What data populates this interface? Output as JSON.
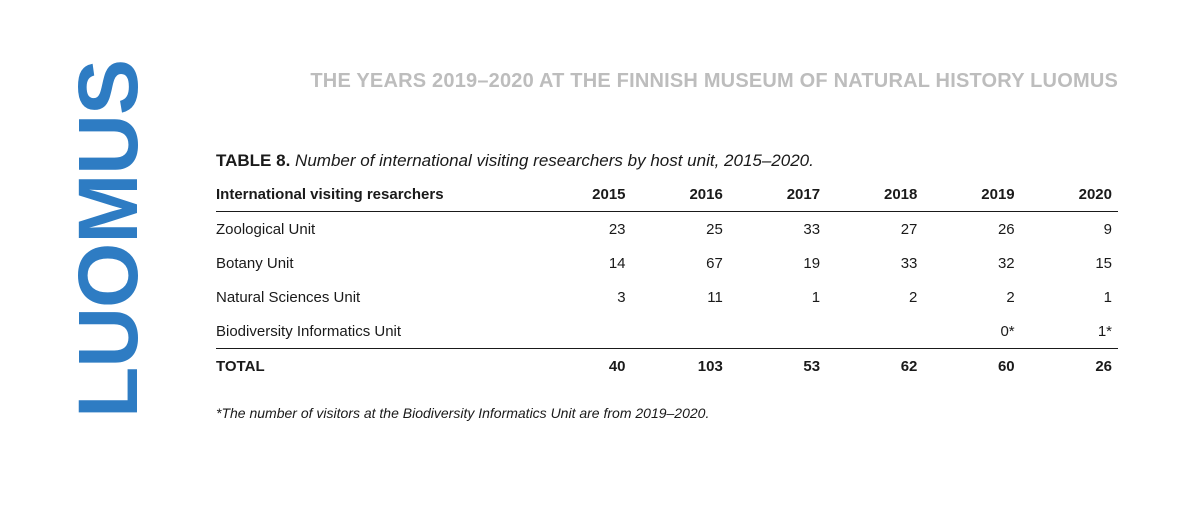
{
  "brand": {
    "text": "LUOMUS",
    "color": "#2e7cc3"
  },
  "header": {
    "title": "THE YEARS 2019–2020 AT THE FINNISH MUSEUM OF NATURAL HISTORY LUOMUS"
  },
  "table": {
    "label": "TABLE 8.",
    "caption": "Number of international visiting researchers by host unit, 2015–2020.",
    "columns": [
      "International visiting resarchers",
      "2015",
      "2016",
      "2017",
      "2018",
      "2019",
      "2020"
    ],
    "rows": [
      [
        "Zoological Unit",
        "23",
        "25",
        "33",
        "27",
        "26",
        "9"
      ],
      [
        "Botany Unit",
        "14",
        "67",
        "19",
        "33",
        "32",
        "15"
      ],
      [
        "Natural Sciences Unit",
        "3",
        "11",
        "1",
        "2",
        "2",
        "1"
      ],
      [
        "Biodiversity Informatics Unit",
        "",
        "",
        "",
        "",
        "0*",
        "1*"
      ]
    ],
    "total": [
      "TOTAL",
      "40",
      "103",
      "53",
      "62",
      "60",
      "26"
    ]
  },
  "footnote": "*The number of visitors at the Biodiversity Informatics Unit are from 2019–2020."
}
